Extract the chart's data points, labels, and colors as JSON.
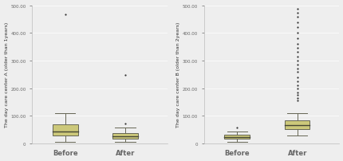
{
  "chart_A": {
    "ylabel": "The day care center A (older than 1years)",
    "xlabels": [
      "Before",
      "After"
    ],
    "ylim": [
      0,
      500
    ],
    "yticks": [
      0,
      100,
      200,
      300,
      400,
      500
    ],
    "ytick_labels": [
      "0",
      "100.00",
      "200.00",
      "300.00",
      "400.00",
      "500.00"
    ],
    "before": {
      "q1": 28,
      "median": 42,
      "q3": 68,
      "whisker_low": 5,
      "whisker_high": 110,
      "outliers": [
        468
      ]
    },
    "after": {
      "q1": 16,
      "median": 24,
      "q3": 38,
      "whisker_low": 5,
      "whisker_high": 58,
      "outliers": [
        248,
        72
      ]
    }
  },
  "chart_B": {
    "ylabel": "The day care center B (older than 2years)",
    "xlabels": [
      "Before",
      "After"
    ],
    "ylim": [
      0,
      500
    ],
    "yticks": [
      0,
      100,
      200,
      300,
      400,
      500
    ],
    "ytick_labels": [
      "0",
      "100.00",
      "200.00",
      "300.00",
      "400.00",
      "500.00"
    ],
    "before": {
      "q1": 17,
      "median": 23,
      "q3": 30,
      "whisker_low": 5,
      "whisker_high": 42,
      "outliers": [
        58
      ]
    },
    "after": {
      "q1": 52,
      "median": 65,
      "q3": 82,
      "whisker_low": 28,
      "whisker_high": 108,
      "outliers": [
        155,
        165,
        175,
        185,
        198,
        210,
        225,
        240,
        258,
        272,
        285,
        300,
        315,
        330,
        345,
        360,
        380,
        400,
        420,
        438,
        458,
        472,
        488
      ]
    }
  },
  "box_facecolor": "#ccc87a",
  "box_edgecolor": "#666655",
  "median_color": "#444433",
  "whisker_color": "#666655",
  "outlier_color": "#333333",
  "bg_color": "#eeeeee",
  "fig_bg": "#eeeeee",
  "spine_color": "#bbbbbb",
  "grid_color": "#ffffff",
  "tick_label_color": "#666666",
  "axis_label_color": "#333333"
}
